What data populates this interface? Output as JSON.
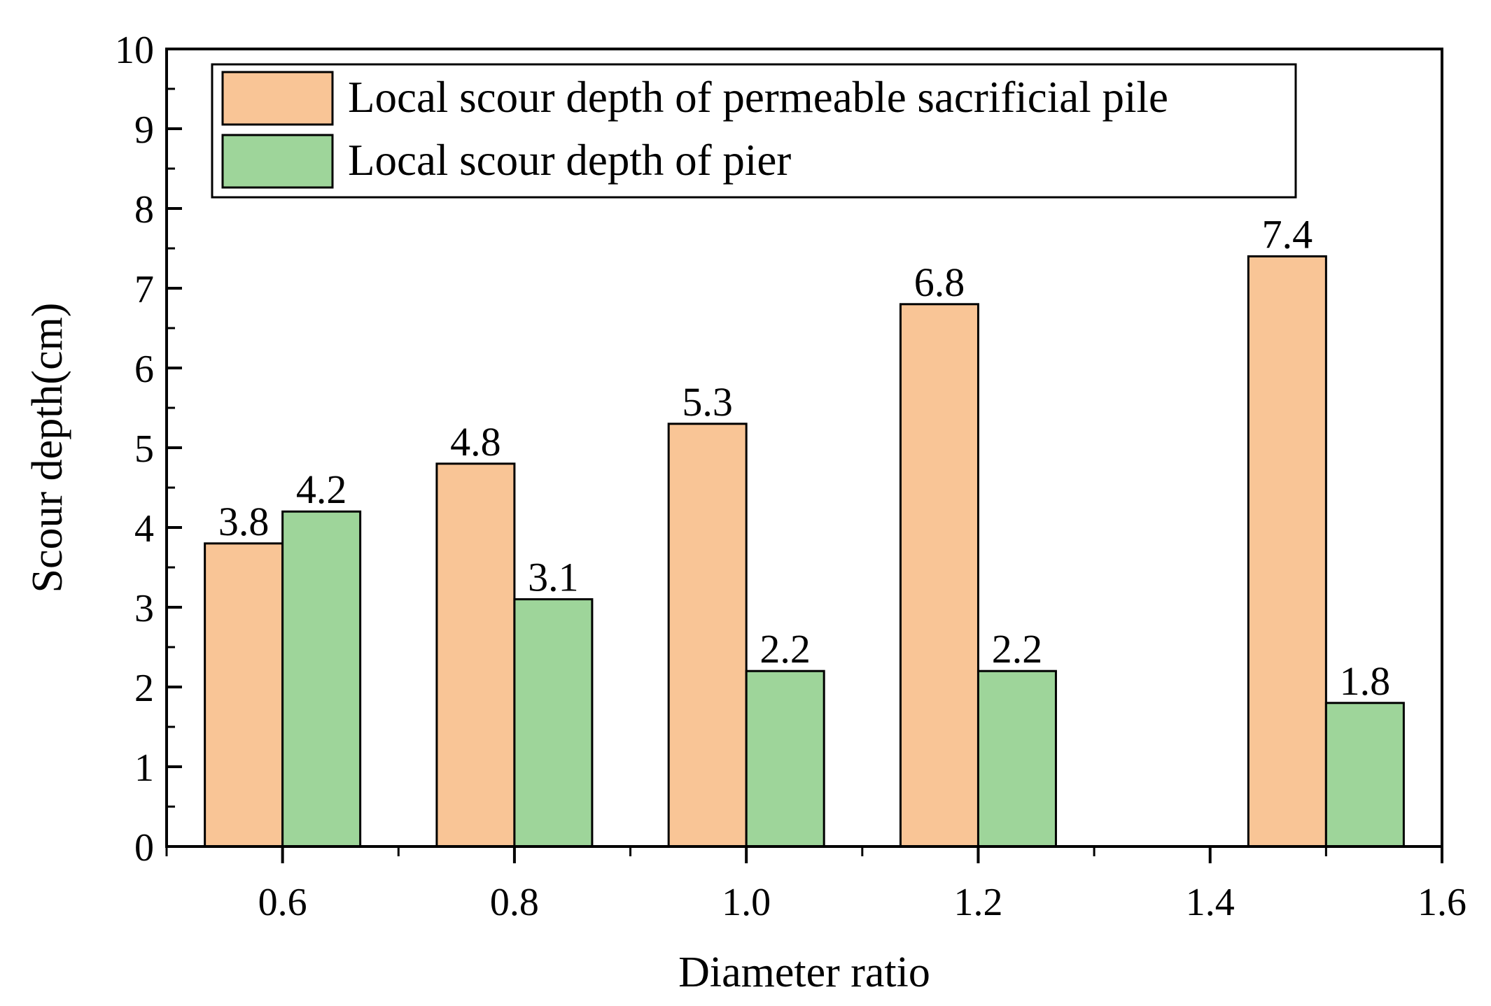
{
  "chart_data": {
    "type": "bar",
    "title": "",
    "xlabel": "Diameter ratio",
    "ylabel": "Scour depth(cm)",
    "xlim": [
      0.5,
      1.6
    ],
    "ylim": [
      0,
      10
    ],
    "x_ticks": [
      "0.6",
      "0.8",
      "1.0",
      "1.2",
      "1.4",
      "1.6"
    ],
    "y_ticks": [
      "0",
      "1",
      "2",
      "3",
      "4",
      "5",
      "6",
      "7",
      "8",
      "9",
      "10"
    ],
    "grid": false,
    "legend_position": "top-left",
    "categories": [
      "0.6",
      "0.8",
      "1.0",
      "1.2",
      "1.5"
    ],
    "x": [
      0.6,
      0.8,
      1.0,
      1.2,
      1.5
    ],
    "series": [
      {
        "name": "Local scour depth of permeable sacrificial pile",
        "color": "#F9C596",
        "values": [
          3.8,
          4.8,
          5.3,
          6.8,
          7.4
        ],
        "labels": [
          "3.8",
          "4.8",
          "5.3",
          "6.8",
          "7.4"
        ]
      },
      {
        "name": "Local scour depth of pier",
        "color": "#9ED59A",
        "values": [
          4.2,
          3.1,
          2.2,
          2.2,
          1.8
        ],
        "labels": [
          "4.2",
          "3.1",
          "2.2",
          "2.2",
          "1.8"
        ]
      }
    ]
  }
}
